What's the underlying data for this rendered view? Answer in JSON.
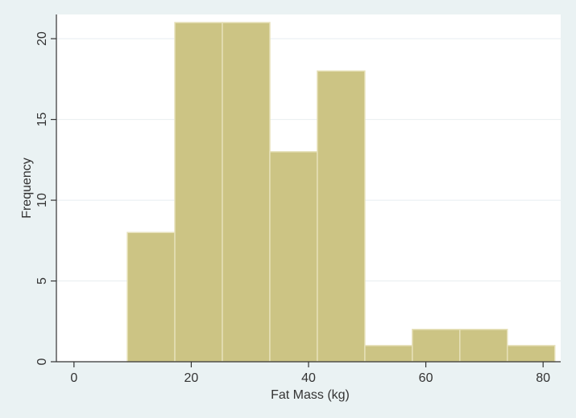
{
  "chart_data": {
    "type": "bar",
    "subtype": "histogram",
    "xlabel": "Fat Mass (kg)",
    "ylabel": "Frequency",
    "xlim": [
      -3,
      83
    ],
    "ylim": [
      0,
      21.5
    ],
    "x_ticks": [
      0,
      20,
      40,
      60,
      80
    ],
    "y_ticks": [
      0,
      5,
      10,
      15,
      20
    ],
    "grid": true,
    "bins": [
      {
        "start": 9.1,
        "end": 17.2,
        "count": 8
      },
      {
        "start": 17.2,
        "end": 25.3,
        "count": 21
      },
      {
        "start": 25.3,
        "end": 33.4,
        "count": 21
      },
      {
        "start": 33.4,
        "end": 41.5,
        "count": 13
      },
      {
        "start": 41.5,
        "end": 49.6,
        "count": 18
      },
      {
        "start": 49.6,
        "end": 57.7,
        "count": 1
      },
      {
        "start": 57.7,
        "end": 65.8,
        "count": 2
      },
      {
        "start": 65.8,
        "end": 73.9,
        "count": 2
      },
      {
        "start": 73.9,
        "end": 82.0,
        "count": 1
      }
    ],
    "colors": {
      "bar_fill": "#ccc484",
      "bar_stroke": "#e6e0b8",
      "plot_bg": "#ffffff",
      "outer_bg": "#eaf2f3",
      "grid": "#e8eef0",
      "axis": "#333333"
    }
  }
}
